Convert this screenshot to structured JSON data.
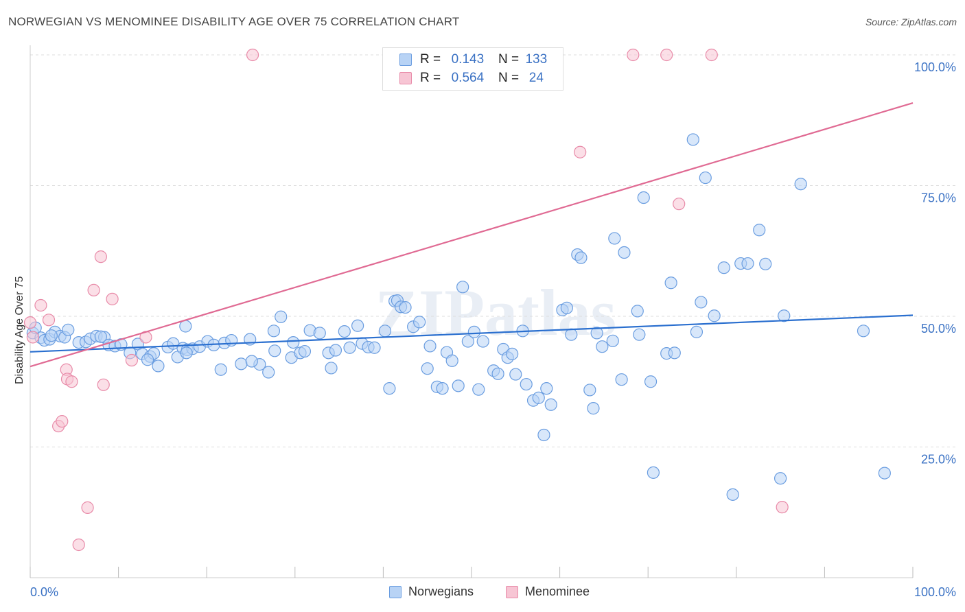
{
  "title": "NORWEGIAN VS MENOMINEE DISABILITY AGE OVER 75 CORRELATION CHART",
  "source": "Source: ZipAtlas.com",
  "watermark": "ZIPatlas",
  "legend_box": {
    "rows": [
      {
        "r_label": "R =",
        "r_value": "0.143",
        "n_label": "N =",
        "n_value": "133"
      },
      {
        "r_label": "R =",
        "r_value": "0.564",
        "n_label": "N =",
        "n_value": "24"
      }
    ]
  },
  "bottom_legend": [
    "Norwegians",
    "Menominee"
  ],
  "colors": {
    "norwegians_fill": "#b8d3f5",
    "norwegians_stroke": "#6a9de0",
    "norwegians_line": "#2a6fcf",
    "menominee_fill": "#f7c5d4",
    "menominee_stroke": "#e88aa8",
    "menominee_line": "#e06a93",
    "axis_tick_text": "#3b72c4",
    "grid": "#dddddd"
  },
  "chart_data": {
    "type": "scatter",
    "title": "NORWEGIAN VS MENOMINEE DISABILITY AGE OVER 75 CORRELATION CHART",
    "xlabel": "",
    "ylabel": "Disability Age Over 75",
    "xlim": [
      0,
      100
    ],
    "ylim": [
      0,
      100
    ],
    "x_tick_labels": [
      "0.0%",
      "100.0%"
    ],
    "y_ticks": [
      25,
      50,
      75,
      100
    ],
    "y_tick_labels": [
      "25.0%",
      "50.0%",
      "75.0%",
      "100.0%"
    ],
    "grid": true,
    "legend_position": "top-center",
    "series": [
      {
        "name": "Norwegians",
        "r": 0.143,
        "n": 133,
        "trend": {
          "x": [
            0,
            100
          ],
          "y": [
            43.2,
            50.2
          ]
        },
        "points": [
          [
            0.3,
            46.8
          ],
          [
            1.2,
            45.9
          ],
          [
            1.6,
            45.4
          ],
          [
            2.2,
            45.6
          ],
          [
            2.8,
            47.0
          ],
          [
            3.4,
            46.2
          ],
          [
            3.9,
            46.0
          ],
          [
            4.3,
            47.4
          ],
          [
            5.5,
            45.0
          ],
          [
            6.3,
            45.1
          ],
          [
            6.8,
            45.7
          ],
          [
            7.5,
            46.2
          ],
          [
            8.4,
            46.0
          ],
          [
            8.9,
            44.5
          ],
          [
            9.6,
            44.3
          ],
          [
            10.3,
            44.6
          ],
          [
            11.3,
            43.0
          ],
          [
            12.2,
            44.7
          ],
          [
            12.7,
            42.8
          ],
          [
            13.6,
            42.3
          ],
          [
            14.0,
            42.9
          ],
          [
            14.5,
            40.5
          ],
          [
            15.6,
            44.1
          ],
          [
            16.7,
            42.2
          ],
          [
            16.2,
            44.8
          ],
          [
            17.3,
            43.9
          ],
          [
            17.8,
            43.6
          ],
          [
            18.4,
            43.8
          ],
          [
            19.2,
            44.2
          ],
          [
            17.6,
            48.1
          ],
          [
            17.7,
            43.0
          ],
          [
            20.1,
            45.2
          ],
          [
            20.8,
            44.5
          ],
          [
            21.6,
            39.8
          ],
          [
            22.0,
            44.9
          ],
          [
            22.8,
            45.4
          ],
          [
            23.9,
            40.9
          ],
          [
            24.9,
            45.6
          ],
          [
            26.0,
            40.8
          ],
          [
            27.0,
            39.3
          ],
          [
            25.1,
            41.4
          ],
          [
            27.7,
            43.4
          ],
          [
            27.6,
            47.2
          ],
          [
            28.4,
            49.9
          ],
          [
            29.6,
            42.1
          ],
          [
            29.8,
            45.0
          ],
          [
            30.6,
            43.0
          ],
          [
            31.7,
            47.3
          ],
          [
            32.8,
            46.8
          ],
          [
            34.1,
            40.1
          ],
          [
            33.8,
            43.0
          ],
          [
            34.6,
            43.5
          ],
          [
            35.6,
            47.1
          ],
          [
            36.2,
            44.0
          ],
          [
            37.1,
            48.2
          ],
          [
            37.6,
            44.8
          ],
          [
            38.3,
            44.1
          ],
          [
            39.0,
            44.0
          ],
          [
            40.2,
            47.2
          ],
          [
            40.7,
            36.2
          ],
          [
            41.3,
            52.9
          ],
          [
            41.6,
            53.0
          ],
          [
            42.0,
            51.8
          ],
          [
            42.5,
            51.7
          ],
          [
            43.4,
            48.0
          ],
          [
            44.1,
            48.9
          ],
          [
            45.0,
            40.0
          ],
          [
            45.3,
            44.3
          ],
          [
            46.1,
            36.5
          ],
          [
            46.7,
            36.2
          ],
          [
            47.2,
            43.1
          ],
          [
            47.8,
            41.5
          ],
          [
            48.5,
            36.7
          ],
          [
            49.0,
            55.6
          ],
          [
            49.6,
            45.2
          ],
          [
            50.3,
            47.0
          ],
          [
            50.8,
            36.0
          ],
          [
            51.3,
            45.2
          ],
          [
            52.5,
            39.6
          ],
          [
            53.0,
            39.0
          ],
          [
            53.6,
            43.7
          ],
          [
            54.1,
            42.1
          ],
          [
            55.0,
            38.9
          ],
          [
            55.8,
            47.2
          ],
          [
            56.2,
            37.0
          ],
          [
            57.0,
            33.9
          ],
          [
            57.6,
            34.4
          ],
          [
            58.2,
            27.3
          ],
          [
            58.5,
            36.2
          ],
          [
            59.0,
            33.1
          ],
          [
            60.3,
            51.2
          ],
          [
            60.8,
            51.6
          ],
          [
            61.3,
            46.5
          ],
          [
            62.0,
            61.8
          ],
          [
            62.4,
            61.2
          ],
          [
            63.4,
            35.9
          ],
          [
            63.8,
            32.4
          ],
          [
            64.2,
            46.8
          ],
          [
            64.8,
            44.2
          ],
          [
            66.0,
            45.3
          ],
          [
            66.2,
            64.9
          ],
          [
            67.0,
            37.9
          ],
          [
            67.3,
            62.2
          ],
          [
            68.8,
            51.0
          ],
          [
            69.0,
            46.5
          ],
          [
            69.5,
            72.7
          ],
          [
            70.3,
            37.5
          ],
          [
            70.6,
            20.1
          ],
          [
            72.1,
            42.9
          ],
          [
            72.6,
            56.4
          ],
          [
            73.0,
            43.0
          ],
          [
            75.1,
            83.8
          ],
          [
            75.5,
            47.0
          ],
          [
            76.0,
            52.7
          ],
          [
            76.5,
            76.5
          ],
          [
            77.5,
            50.1
          ],
          [
            78.6,
            59.3
          ],
          [
            79.6,
            15.9
          ],
          [
            80.5,
            60.1
          ],
          [
            81.3,
            60.1
          ],
          [
            82.6,
            66.5
          ],
          [
            83.3,
            60.0
          ],
          [
            85.0,
            19.0
          ],
          [
            85.4,
            50.1
          ],
          [
            87.3,
            75.3
          ],
          [
            94.4,
            47.2
          ],
          [
            96.8,
            20.0
          ],
          [
            0.6,
            47.8
          ],
          [
            2.4,
            46.3
          ],
          [
            8.0,
            46.1
          ],
          [
            13.3,
            41.7
          ],
          [
            31.1,
            43.3
          ],
          [
            54.6,
            42.8
          ]
        ]
      },
      {
        "name": "Menominee",
        "r": 0.564,
        "n": 24,
        "trend": {
          "x": [
            0,
            100
          ],
          "y": [
            40.4,
            90.8
          ]
        },
        "points": [
          [
            0.0,
            48.8
          ],
          [
            0.3,
            46.0
          ],
          [
            1.2,
            52.1
          ],
          [
            2.1,
            49.3
          ],
          [
            3.2,
            29.0
          ],
          [
            3.6,
            29.9
          ],
          [
            4.1,
            39.8
          ],
          [
            4.2,
            38.0
          ],
          [
            4.7,
            37.5
          ],
          [
            5.5,
            6.3
          ],
          [
            6.5,
            13.4
          ],
          [
            7.2,
            55.0
          ],
          [
            8.0,
            61.4
          ],
          [
            8.3,
            36.9
          ],
          [
            9.3,
            53.3
          ],
          [
            11.5,
            41.6
          ],
          [
            13.1,
            46.0
          ],
          [
            25.2,
            100.0
          ],
          [
            62.3,
            81.4
          ],
          [
            68.3,
            100.0
          ],
          [
            72.1,
            100.0
          ],
          [
            73.5,
            71.5
          ],
          [
            77.2,
            100.0
          ],
          [
            85.2,
            13.5
          ]
        ]
      }
    ]
  }
}
